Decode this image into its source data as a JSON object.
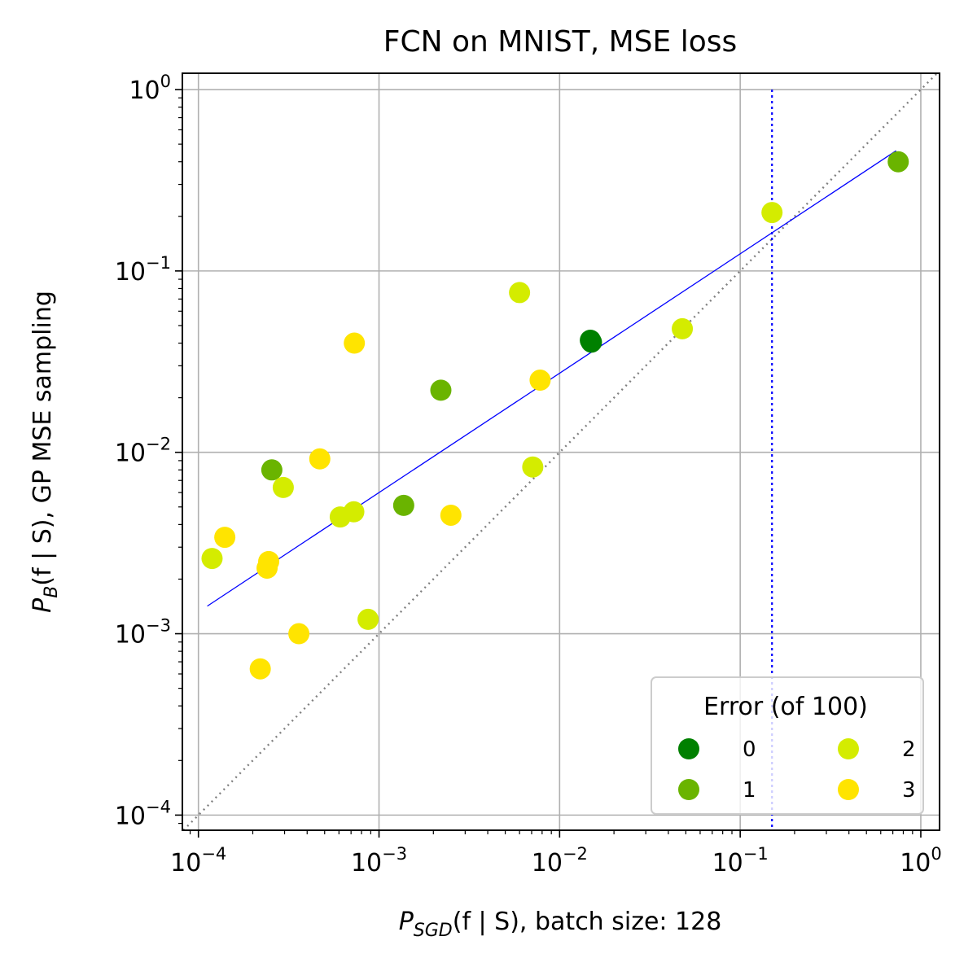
{
  "chart_data": {
    "type": "scatter",
    "title": "FCN on MNIST, MSE loss",
    "xlabel": {
      "main": "P",
      "sub": "SGD",
      "rest": "(f | S), batch size: 128"
    },
    "ylabel": {
      "main": "P",
      "sub": "B",
      "rest": "(f | S), GP MSE sampling"
    },
    "xscale": "log",
    "yscale": "log",
    "xlim": [
      8.15e-05,
      1.27
    ],
    "ylim": [
      8.25e-05,
      1.23
    ],
    "grid": true,
    "x_ticks": [
      {
        "value": 0.0001,
        "base": "10",
        "exp": "−4"
      },
      {
        "value": 0.001,
        "base": "10",
        "exp": "−3"
      },
      {
        "value": 0.01,
        "base": "10",
        "exp": "−2"
      },
      {
        "value": 0.1,
        "base": "10",
        "exp": "−1"
      },
      {
        "value": 1,
        "base": "10",
        "exp": "0"
      }
    ],
    "y_ticks": [
      {
        "value": 0.0001,
        "base": "10",
        "exp": "−4"
      },
      {
        "value": 0.001,
        "base": "10",
        "exp": "−3"
      },
      {
        "value": 0.01,
        "base": "10",
        "exp": "−2"
      },
      {
        "value": 0.1,
        "base": "10",
        "exp": "−1"
      },
      {
        "value": 1,
        "base": "10",
        "exp": "0"
      }
    ],
    "legend": {
      "title": "Error (of 100)",
      "placement": "lower-right",
      "entries": [
        {
          "label": "0",
          "color": "#008000"
        },
        {
          "label": "1",
          "color": "#6ab400"
        },
        {
          "label": "2",
          "color": "#d4ec00"
        },
        {
          "label": "3",
          "color": "#ffe400"
        }
      ]
    },
    "series": [
      {
        "name": "0",
        "color": "#008000",
        "points": [
          [
            0.0148,
            0.0415
          ],
          [
            0.015,
            0.0405
          ]
        ]
      },
      {
        "name": "1",
        "color": "#6ab400",
        "points": [
          [
            0.75,
            0.4
          ],
          [
            0.0022,
            0.022
          ],
          [
            0.000255,
            0.008
          ],
          [
            0.00137,
            0.0051
          ]
        ]
      },
      {
        "name": "2",
        "color": "#d4ec00",
        "points": [
          [
            0.15,
            0.21
          ],
          [
            0.006,
            0.076
          ],
          [
            0.0478,
            0.048
          ],
          [
            0.0071,
            0.0083
          ],
          [
            0.000295,
            0.0064
          ],
          [
            0.000725,
            0.0047
          ],
          [
            0.00061,
            0.0044
          ],
          [
            0.000119,
            0.0026
          ],
          [
            0.00087,
            0.0012
          ]
        ]
      },
      {
        "name": "3",
        "color": "#ffe400",
        "points": [
          [
            0.00073,
            0.04
          ],
          [
            0.0078,
            0.025
          ],
          [
            0.00047,
            0.0092
          ],
          [
            0.0025,
            0.0045
          ],
          [
            0.00014,
            0.0034
          ],
          [
            0.000245,
            0.0025
          ],
          [
            0.00024,
            0.0023
          ],
          [
            0.00036,
            0.001
          ],
          [
            0.00022,
            0.00064
          ]
        ]
      }
    ],
    "fit_line": {
      "color": "#0000ff",
      "from": [
        0.000112,
        0.00142
      ],
      "to": [
        0.73,
        0.46
      ]
    },
    "identity_line": {
      "color": "#808080",
      "style": "dotted"
    },
    "vertical_line": {
      "x": 0.15,
      "color": "#0000ff",
      "style": "dotted"
    }
  }
}
